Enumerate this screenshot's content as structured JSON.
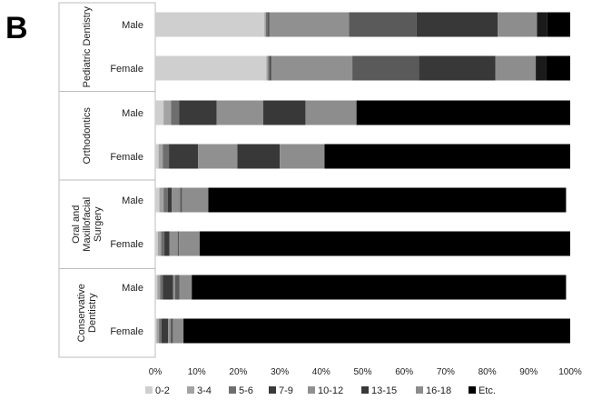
{
  "panel_label": "B",
  "chart_data": {
    "type": "bar",
    "orientation": "horizontal",
    "stacked": true,
    "xlim": [
      0,
      100
    ],
    "x_ticks": [
      "0%",
      "10%",
      "20%",
      "30%",
      "40%",
      "50%",
      "60%",
      "70%",
      "80%",
      "90%",
      "100%"
    ],
    "groups": [
      {
        "name_lines": [
          "Pediatric Dentistry"
        ],
        "bars": [
          "Male",
          "Female"
        ]
      },
      {
        "name_lines": [
          "Orthodontics"
        ],
        "bars": [
          "Male",
          "Female"
        ]
      },
      {
        "name_lines": [
          "Oral and",
          "Maxillofacial",
          "Surgery"
        ],
        "bars": [
          "Male",
          "Female"
        ]
      },
      {
        "name_lines": [
          "Conservative",
          "Dentistry"
        ],
        "bars": [
          "Male",
          "Female"
        ]
      }
    ],
    "categories": [
      "Pediatric Dentistry - Male",
      "Pediatric Dentistry - Female",
      "Orthodontics - Male",
      "Orthodontics - Female",
      "Oral and Maxillofacial Surgery - Male",
      "Oral and Maxillofacial Surgery - Female",
      "Conservative Dentistry - Male",
      "Conservative Dentistry - Female"
    ],
    "series": [
      {
        "name": "0-2",
        "color": "#cfcfcf",
        "values": [
          26.3,
          26.8,
          2.0,
          0.8,
          1.0,
          0.6,
          0.5,
          0.3
        ]
      },
      {
        "name": "3-4",
        "color": "#a3a3a3",
        "values": [
          0.4,
          0.4,
          1.8,
          1.0,
          1.0,
          0.8,
          0.7,
          0.6
        ]
      },
      {
        "name": "5-6",
        "color": "#6e6e6e",
        "values": [
          0.5,
          0.4,
          2.0,
          1.5,
          1.0,
          0.8,
          0.6,
          0.6
        ]
      },
      {
        "name": "7-9",
        "color": "#3a3a3a",
        "values": [
          0.3,
          0.3,
          9.0,
          7.0,
          1.0,
          1.2,
          2.5,
          1.6
        ]
      },
      {
        "name": "10-12",
        "color": "#909090",
        "values": [
          19.2,
          19.6,
          11.2,
          9.5,
          2.0,
          2.0,
          0.5,
          0.6
        ]
      },
      {
        "name": "13-15",
        "color": "#5a5a5a",
        "values": [
          16.3,
          16.0,
          0.0,
          0.0,
          0.5,
          0.3,
          1.0,
          0.6
        ]
      },
      {
        "name": "16-18",
        "color": "#383838",
        "values": [
          19.5,
          18.5,
          10.2,
          10.2,
          0.0,
          0.0,
          0.0,
          0.0
        ]
      },
      {
        "name": "Etc.",
        "color": "#8d8d8d",
        "values": [
          9.5,
          9.7,
          12.3,
          10.8,
          6.3,
          5.0,
          3.0,
          2.5
        ]
      },
      {
        "name": "",
        "color": "#1a1a1a",
        "values": [
          2.5,
          2.6,
          0.0,
          0.0,
          0.0,
          0.0,
          0.0,
          0.0
        ]
      },
      {
        "name": "",
        "color": "#000000",
        "values": [
          5.5,
          5.7,
          51.5,
          59.2,
          86.2,
          89.3,
          90.2,
          93.2
        ]
      }
    ]
  }
}
